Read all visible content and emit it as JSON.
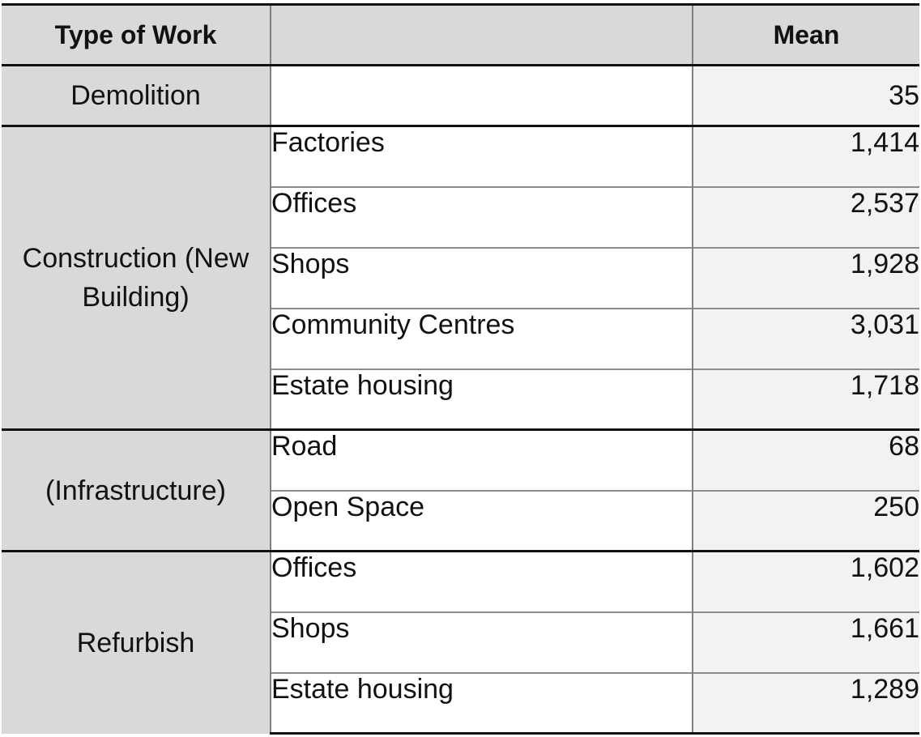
{
  "table": {
    "headers": {
      "type_of_work": "Type of Work",
      "subtype": "",
      "mean": "Mean"
    },
    "groups": [
      {
        "label": "Demolition",
        "rows": [
          {
            "subtype": "",
            "mean": "35"
          }
        ]
      },
      {
        "label": "Construction (New Building)",
        "rows": [
          {
            "subtype": "Factories",
            "mean": "1,414"
          },
          {
            "subtype": "Offices",
            "mean": "2,537"
          },
          {
            "subtype": "Shops",
            "mean": "1,928"
          },
          {
            "subtype": "Community Centres",
            "mean": "3,031"
          },
          {
            "subtype": "Estate housing",
            "mean": "1,718"
          }
        ]
      },
      {
        "label": "(Infrastructure)",
        "rows": [
          {
            "subtype": "Road",
            "mean": "68"
          },
          {
            "subtype": "Open Space",
            "mean": "250"
          }
        ]
      },
      {
        "label": "Refurbish",
        "rows": [
          {
            "subtype": "Offices",
            "mean": "1,602"
          },
          {
            "subtype": "Shops",
            "mean": "1,661"
          },
          {
            "subtype": "Estate housing",
            "mean": "1,289"
          }
        ]
      }
    ]
  }
}
